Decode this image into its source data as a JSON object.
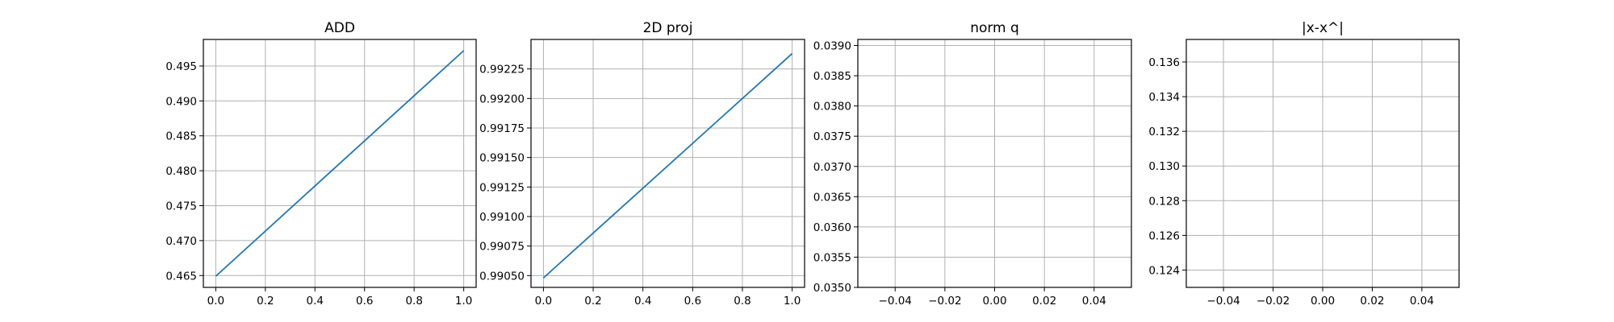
{
  "chart_data": [
    {
      "type": "line",
      "title": "ADD",
      "xlabel": "",
      "ylabel": "",
      "xlim": [
        -0.05,
        1.05
      ],
      "ylim": [
        0.4633,
        0.4988
      ],
      "xticks": [
        0.0,
        0.2,
        0.4,
        0.6,
        0.8,
        1.0
      ],
      "xtick_labels": [
        "0.0",
        "0.2",
        "0.4",
        "0.6",
        "0.8",
        "1.0"
      ],
      "yticks": [
        0.465,
        0.47,
        0.475,
        0.48,
        0.485,
        0.49,
        0.495
      ],
      "ytick_labels": [
        "0.465",
        "0.470",
        "0.475",
        "0.480",
        "0.485",
        "0.490",
        "0.495"
      ],
      "grid": true,
      "series": [
        {
          "x": [
            0.0,
            1.0
          ],
          "y": [
            0.4649,
            0.4972
          ],
          "color": "#1f77b4"
        }
      ]
    },
    {
      "type": "line",
      "title": "2D proj",
      "xlabel": "",
      "ylabel": "",
      "xlim": [
        -0.05,
        1.05
      ],
      "ylim": [
        0.9904,
        0.9925
      ],
      "xticks": [
        0.0,
        0.2,
        0.4,
        0.6,
        0.8,
        1.0
      ],
      "xtick_labels": [
        "0.0",
        "0.2",
        "0.4",
        "0.6",
        "0.8",
        "1.0"
      ],
      "yticks": [
        0.9905,
        0.99075,
        0.991,
        0.99125,
        0.9915,
        0.99175,
        0.992,
        0.99225
      ],
      "ytick_labels": [
        "0.99050",
        "0.99075",
        "0.99100",
        "0.99125",
        "0.99150",
        "0.99175",
        "0.99200",
        "0.99225"
      ],
      "grid": true,
      "series": [
        {
          "x": [
            0.0,
            1.0
          ],
          "y": [
            0.99048,
            0.99238
          ],
          "color": "#1f77b4"
        }
      ]
    },
    {
      "type": "line",
      "title": "norm q",
      "xlabel": "",
      "ylabel": "",
      "xlim": [
        -0.055,
        0.055
      ],
      "ylim": [
        0.035,
        0.0391
      ],
      "xticks": [
        -0.04,
        -0.02,
        0.0,
        0.02,
        0.04
      ],
      "xtick_labels": [
        "−0.04",
        "−0.02",
        "0.00",
        "0.02",
        "0.04"
      ],
      "yticks": [
        0.035,
        0.0355,
        0.036,
        0.0365,
        0.037,
        0.0375,
        0.038,
        0.0385,
        0.039
      ],
      "ytick_labels": [
        "0.0350",
        "0.0355",
        "0.0360",
        "0.0365",
        "0.0370",
        "0.0375",
        "0.0380",
        "0.0385",
        "0.0390"
      ],
      "grid": true,
      "series": []
    },
    {
      "type": "line",
      "title": "|x-x^|",
      "xlabel": "",
      "ylabel": "",
      "xlim": [
        -0.055,
        0.055
      ],
      "ylim": [
        0.123,
        0.1373
      ],
      "xticks": [
        -0.04,
        -0.02,
        0.0,
        0.02,
        0.04
      ],
      "xtick_labels": [
        "−0.04",
        "−0.02",
        "0.00",
        "0.02",
        "0.04"
      ],
      "yticks": [
        0.124,
        0.126,
        0.128,
        0.13,
        0.132,
        0.134,
        0.136
      ],
      "ytick_labels": [
        "0.124",
        "0.126",
        "0.128",
        "0.130",
        "0.132",
        "0.134",
        "0.136"
      ],
      "grid": true,
      "series": []
    }
  ]
}
